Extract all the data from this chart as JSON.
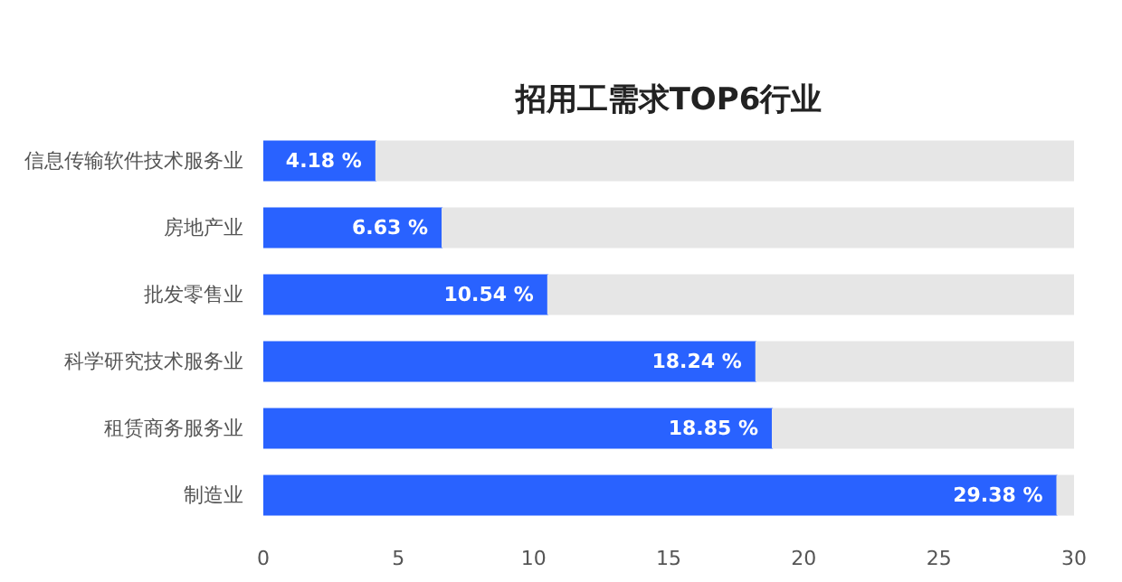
{
  "chart_data": {
    "type": "bar",
    "orientation": "horizontal",
    "stacked": true,
    "title": "招用工需求TOP6行业",
    "categories": [
      "信息传输软件技术服务业",
      "房地产业",
      "批发零售业",
      "科学研究技术服务业",
      "租赁商务服务业",
      "制造业"
    ],
    "series": [
      {
        "color": "#2962ff",
        "values": [
          4.18,
          6.63,
          10.54,
          18.24,
          18.85,
          29.38
        ],
        "value_labels": [
          "4.18 %",
          "6.63 %",
          "10.54 %",
          "18.24 %",
          "18.85 %",
          "29.38 %"
        ]
      },
      {
        "color": "#e6e6e6",
        "values": [
          25.82,
          23.37,
          19.46,
          11.76,
          11.15,
          0.62
        ]
      }
    ],
    "xlim": [
      0,
      30
    ],
    "xticks": [
      0,
      5,
      10,
      15,
      20,
      25,
      30
    ],
    "grid": false
  }
}
